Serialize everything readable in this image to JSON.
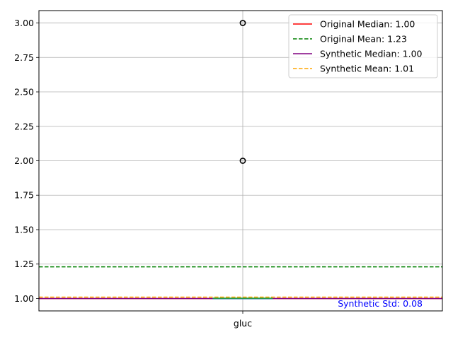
{
  "chart_data": {
    "type": "box",
    "title": "",
    "xlabel": "",
    "ylabel": "",
    "categories": [
      "gluc"
    ],
    "ylim": [
      0.91,
      3.09
    ],
    "yticks": [
      1.0,
      1.25,
      1.5,
      1.75,
      2.0,
      2.25,
      2.5,
      2.75,
      3.0
    ],
    "ytick_labels": [
      "1.00",
      "1.25",
      "1.50",
      "1.75",
      "2.00",
      "2.25",
      "2.50",
      "2.75",
      "3.00"
    ],
    "grid": true,
    "legend_position": "top-right",
    "box": {
      "category": "gluc",
      "q1": 1.0,
      "median": 1.0,
      "q3": 1.0,
      "whisker_low": 1.0,
      "whisker_high": 1.0,
      "outliers": [
        2.0,
        3.0
      ]
    },
    "reference_lines": [
      {
        "label": "Original Median: 1.00",
        "value": 1.0,
        "color": "#ff0000",
        "style": "solid"
      },
      {
        "label": "Original Mean: 1.23",
        "value": 1.23,
        "color": "#008000",
        "style": "dashed"
      },
      {
        "label": "Synthetic Median: 1.00",
        "value": 1.0,
        "color": "#800080",
        "style": "solid"
      },
      {
        "label": "Synthetic Mean: 1.01",
        "value": 1.01,
        "color": "#ffa500",
        "style": "dashed"
      }
    ],
    "annotation": {
      "text": "Synthetic Std: 0.08",
      "color": "#0000ff"
    }
  }
}
